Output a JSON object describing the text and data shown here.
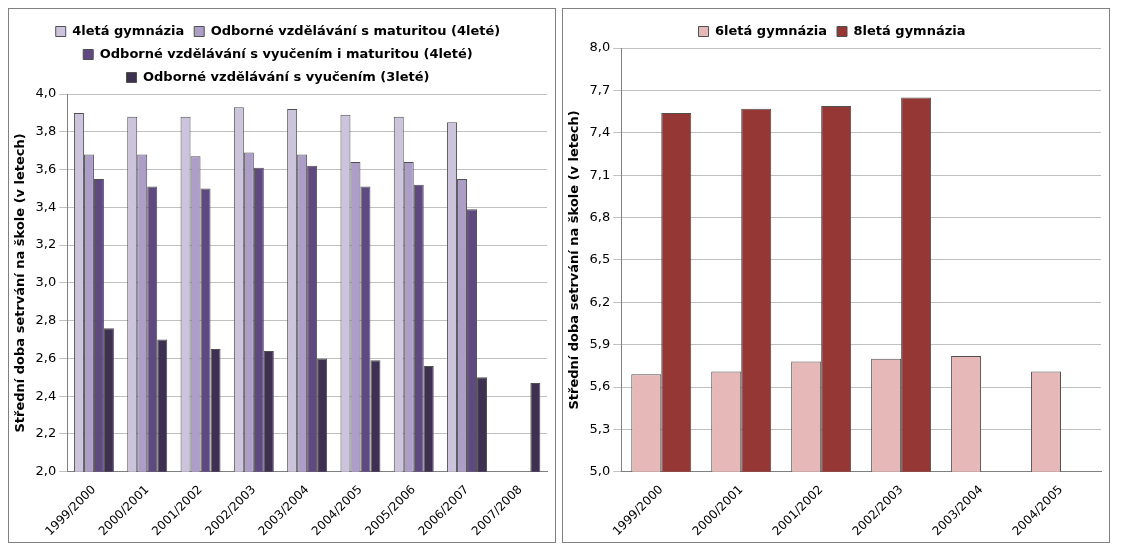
{
  "chart_data": [
    {
      "type": "bar",
      "ylabel": "Střední doba setrvání na škole (v letech)",
      "categories": [
        "1999/2000",
        "2000/2001",
        "2001/2002",
        "2002/2003",
        "2003/2004",
        "2004/2005",
        "2005/2006",
        "2006/2007",
        "2007/2008"
      ],
      "series": [
        {
          "name": "4letá gymnázia",
          "color": "#ccc4dc",
          "values": [
            3.9,
            3.88,
            3.88,
            3.93,
            3.92,
            3.89,
            3.88,
            3.85,
            null
          ]
        },
        {
          "name": "Odborné vzdělávání s maturitou (4leté)",
          "color": "#ad9ec8",
          "values": [
            3.68,
            3.68,
            3.67,
            3.69,
            3.68,
            3.64,
            3.64,
            3.55,
            null
          ]
        },
        {
          "name": "Odborné vzdělávání s vyučením i maturitou (4leté)",
          "color": "#5f4a80",
          "values": [
            3.55,
            3.51,
            3.5,
            3.61,
            3.62,
            3.51,
            3.52,
            3.39,
            null
          ]
        },
        {
          "name": "Odborné vzdělávání s vyučením (3leté)",
          "color": "#3d3050",
          "values": [
            2.76,
            2.7,
            2.65,
            2.64,
            2.6,
            2.59,
            2.56,
            2.5,
            2.47
          ]
        }
      ],
      "ylim": [
        2.0,
        4.0
      ],
      "yticks": [
        {
          "value": 2.0,
          "label": "2,0"
        },
        {
          "value": 2.2,
          "label": "2,2"
        },
        {
          "value": 2.4,
          "label": "2,4"
        },
        {
          "value": 2.6,
          "label": "2,6"
        },
        {
          "value": 2.8,
          "label": "2,8"
        },
        {
          "value": 3.0,
          "label": "3,0"
        },
        {
          "value": 3.2,
          "label": "3,2"
        },
        {
          "value": 3.4,
          "label": "3,4"
        },
        {
          "value": 3.6,
          "label": "3,6"
        },
        {
          "value": 3.8,
          "label": "3,8"
        },
        {
          "value": 4.0,
          "label": "4,0"
        }
      ],
      "grid": "y",
      "legend": "top"
    },
    {
      "type": "bar",
      "ylabel": "Střední doba setrvání na škole (v letech)",
      "categories": [
        "1999/2000",
        "2000/2001",
        "2001/2002",
        "2002/2003",
        "2003/2004",
        "2004/2005"
      ],
      "series": [
        {
          "name": "6letá gymnázia",
          "color": "#e6b8b7",
          "values": [
            5.69,
            5.71,
            5.78,
            5.8,
            5.82,
            5.71
          ]
        },
        {
          "name": "8letá gymnázia",
          "color": "#953735",
          "values": [
            7.54,
            7.57,
            7.59,
            7.65,
            null,
            null
          ]
        }
      ],
      "ylim": [
        5.0,
        8.0
      ],
      "yticks": [
        {
          "value": 5.0,
          "label": "5,0"
        },
        {
          "value": 5.3,
          "label": "5,3"
        },
        {
          "value": 5.6,
          "label": "5,6"
        },
        {
          "value": 5.9,
          "label": "5,9"
        },
        {
          "value": 6.2,
          "label": "6,2"
        },
        {
          "value": 6.5,
          "label": "6,5"
        },
        {
          "value": 6.8,
          "label": "6,8"
        },
        {
          "value": 7.1,
          "label": "7,1"
        },
        {
          "value": 7.4,
          "label": "7,4"
        },
        {
          "value": 7.7,
          "label": "7,7"
        },
        {
          "value": 8.0,
          "label": "8,0"
        }
      ],
      "grid": "y",
      "legend": "top"
    }
  ]
}
